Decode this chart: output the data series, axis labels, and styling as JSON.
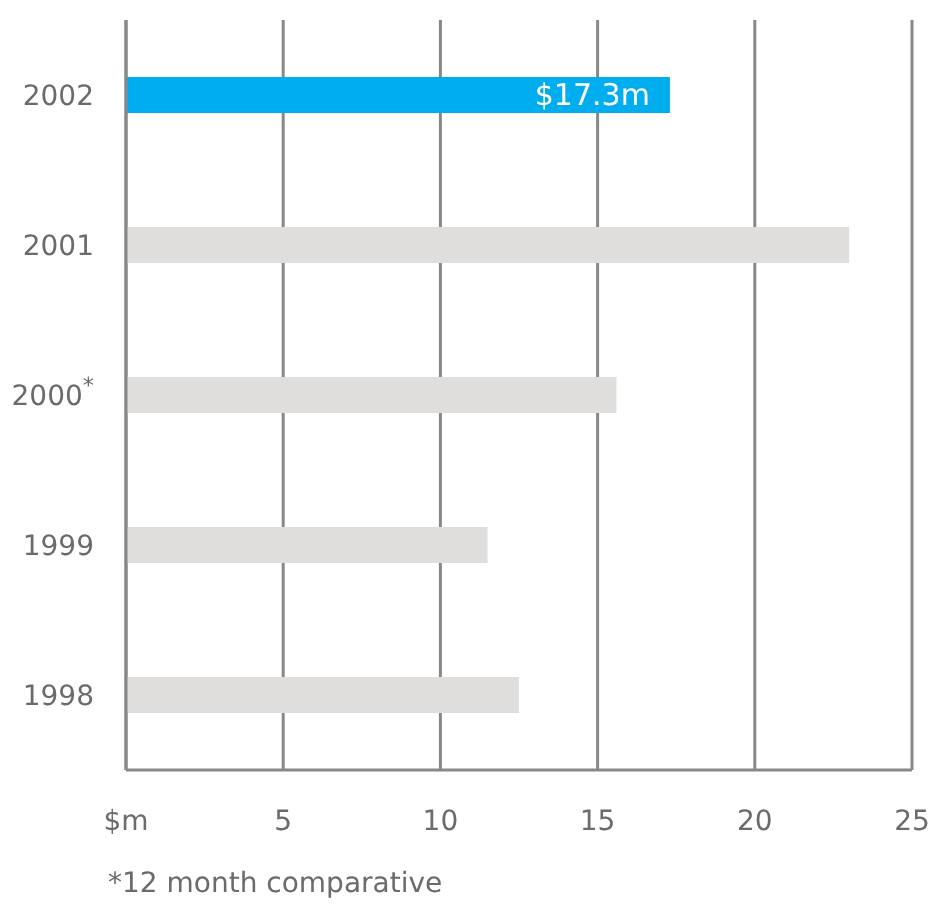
{
  "chart_data": {
    "type": "bar",
    "orientation": "horizontal",
    "categories": [
      "2002",
      "2001",
      "2000$^{*}$",
      "1999",
      "1998"
    ],
    "values": [
      17.3,
      23,
      15.6,
      11.5,
      12.5
    ],
    "colors": [
      "#00aeef",
      "#e0dedd",
      "#e0dedd",
      "#e0dedd",
      "#e0dedd"
    ],
    "value_labels": [
      "$17.3m",
      null,
      null,
      null,
      null
    ],
    "xlim": [
      0,
      25
    ],
    "xticks": [
      {
        "value": 0,
        "label": "$m"
      },
      5,
      10,
      15,
      20,
      25
    ],
    "grid": "x",
    "annotations": [
      "*12 month comparative"
    ]
  }
}
